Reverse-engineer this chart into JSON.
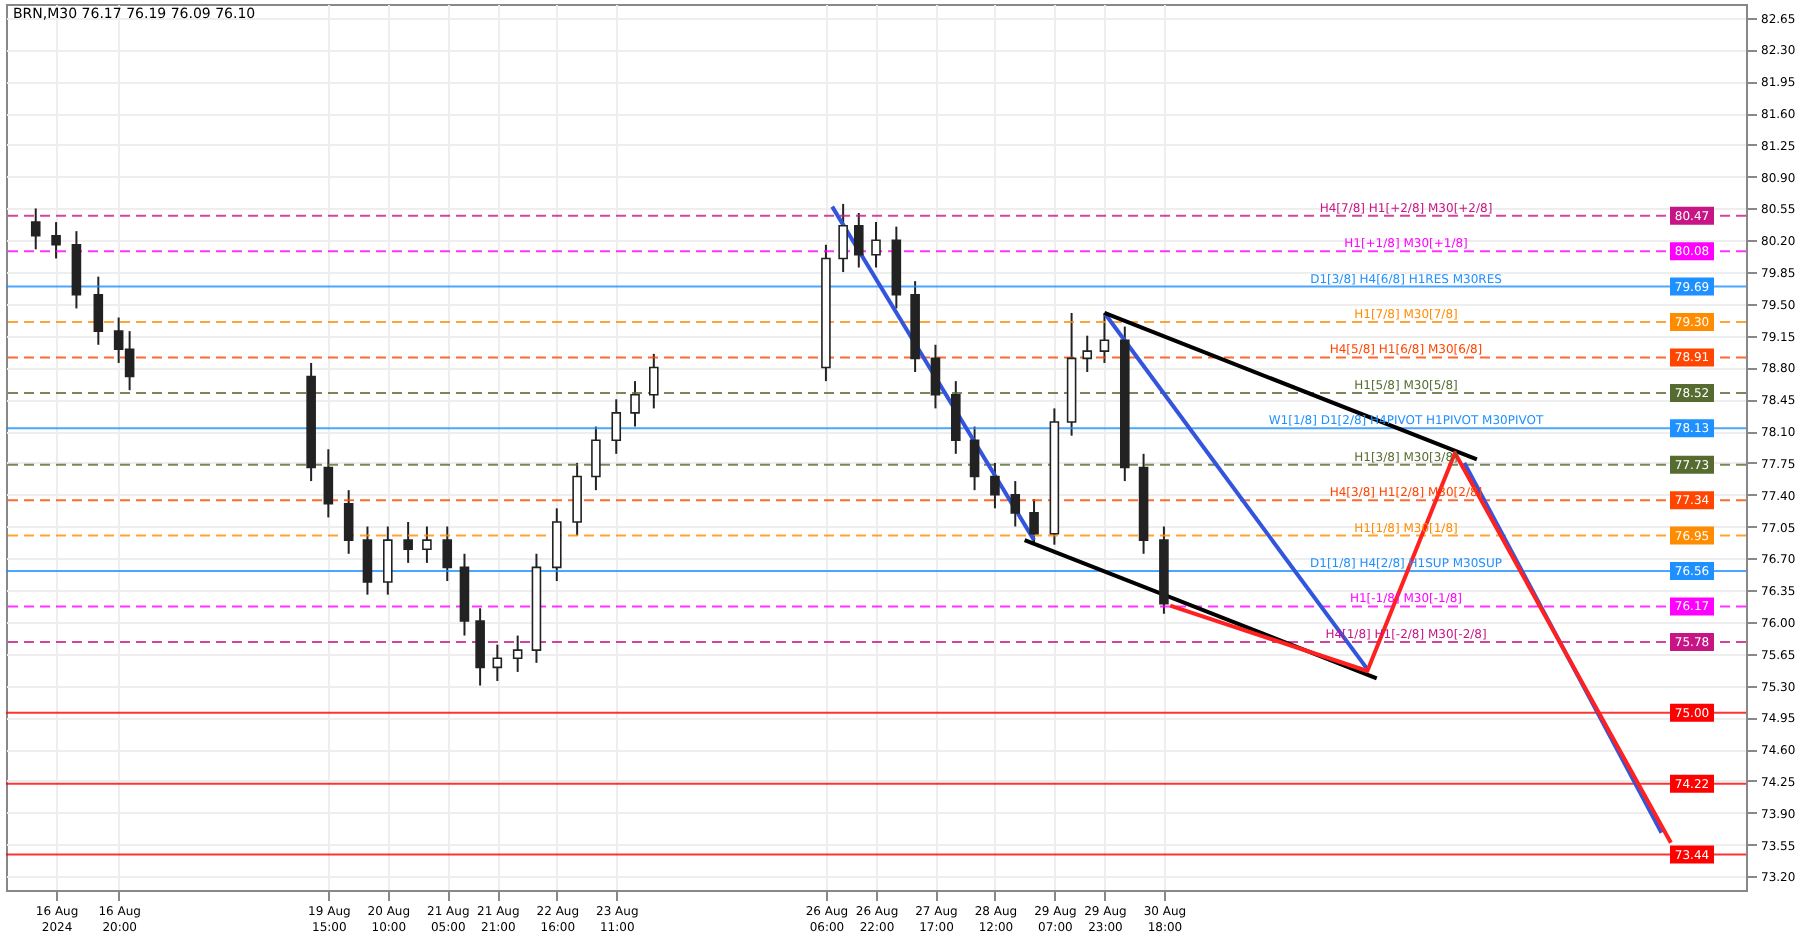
{
  "chart_data": {
    "type": "candlestick",
    "title": "BRN,M30  76.17 76.19 76.09 76.10",
    "xlim": [
      "2024-08-15T08:00",
      "2024-09-07T12:00"
    ],
    "ylim": [
      73.05,
      82.8
    ],
    "xticks": [
      {
        "value": "2024-08-16T00:00",
        "label": "16 Aug 2024"
      },
      {
        "value": "2024-08-16T20:00",
        "label": "16 Aug 20:00"
      },
      {
        "value": "2024-08-19T15:00",
        "label": "19 Aug 15:00"
      },
      {
        "value": "2024-08-20T10:00",
        "label": "20 Aug 10:00"
      },
      {
        "value": "2024-08-21T05:00",
        "label": "21 Aug 05:00"
      },
      {
        "value": "2024-08-21T21:00",
        "label": "21 Aug 21:00"
      },
      {
        "value": "2024-08-22T16:00",
        "label": "22 Aug 16:00"
      },
      {
        "value": "2024-08-23T11:00",
        "label": "23 Aug 11:00"
      },
      {
        "value": "2024-08-26T06:00",
        "label": "26 Aug 06:00"
      },
      {
        "value": "2024-08-26T22:00",
        "label": "26 Aug 22:00"
      },
      {
        "value": "2024-08-27T17:00",
        "label": "27 Aug 17:00"
      },
      {
        "value": "2024-08-28T12:00",
        "label": "28 Aug 12:00"
      },
      {
        "value": "2024-08-29T07:00",
        "label": "29 Aug 07:00"
      },
      {
        "value": "2024-08-29T23:00",
        "label": "29 Aug 23:00"
      },
      {
        "value": "2024-08-30T18:00",
        "label": "30 Aug 18:00"
      }
    ],
    "yticks": [
      {
        "value": 73.2,
        "label": "73.20"
      },
      {
        "value": 73.55,
        "label": "73.55"
      },
      {
        "value": 73.9,
        "label": "73.90"
      },
      {
        "value": 74.25,
        "label": "74.25"
      },
      {
        "value": 74.6,
        "label": "74.60"
      },
      {
        "value": 74.95,
        "label": "74.95"
      },
      {
        "value": 75.3,
        "label": "75.30"
      },
      {
        "value": 75.65,
        "label": "75.65"
      },
      {
        "value": 76.0,
        "label": "76.00"
      },
      {
        "value": 76.35,
        "label": "76.35"
      },
      {
        "value": 76.7,
        "label": "76.70"
      },
      {
        "value": 77.05,
        "label": "77.05"
      },
      {
        "value": 77.4,
        "label": "77.40"
      },
      {
        "value": 77.75,
        "label": "77.75"
      },
      {
        "value": 78.1,
        "label": "78.10"
      },
      {
        "value": 78.45,
        "label": "78.45"
      },
      {
        "value": 78.8,
        "label": "78.80"
      },
      {
        "value": 79.15,
        "label": "79.15"
      },
      {
        "value": 79.5,
        "label": "79.50"
      },
      {
        "value": 79.85,
        "label": "79.85"
      },
      {
        "value": 80.2,
        "label": "80.20"
      },
      {
        "value": 80.55,
        "label": "80.55"
      },
      {
        "value": 80.9,
        "label": "80.90"
      },
      {
        "value": 81.25,
        "label": "81.25"
      },
      {
        "value": 81.6,
        "label": "81.60"
      },
      {
        "value": 81.95,
        "label": "81.95"
      },
      {
        "value": 82.3,
        "label": "82.30"
      },
      {
        "value": 82.65,
        "label": "82.65"
      }
    ],
    "grid": true,
    "x": [
      "2024-08-15T17:30",
      "2024-08-16T00:00",
      "2024-08-16T06:30",
      "2024-08-16T13:30",
      "2024-08-16T20:00",
      "2024-08-16T23:30",
      "2024-08-19T09:30",
      "2024-08-19T15:00",
      "2024-08-19T21:30",
      "2024-08-20T03:30",
      "2024-08-20T10:00",
      "2024-08-20T16:30",
      "2024-08-20T22:30",
      "2024-08-21T05:00",
      "2024-08-21T10:30",
      "2024-08-21T15:30",
      "2024-08-21T21:00",
      "2024-08-22T03:30",
      "2024-08-22T09:30",
      "2024-08-22T16:00",
      "2024-08-22T22:30",
      "2024-08-23T04:30",
      "2024-08-23T11:00",
      "2024-08-23T17:00",
      "2024-08-23T23:00",
      "2024-08-26T06:00",
      "2024-08-26T11:30",
      "2024-08-26T16:30",
      "2024-08-26T22:00",
      "2024-08-27T04:30",
      "2024-08-27T10:30",
      "2024-08-27T17:00",
      "2024-08-27T23:30",
      "2024-08-28T05:30",
      "2024-08-28T12:00",
      "2024-08-28T18:30",
      "2024-08-29T00:30",
      "2024-08-29T07:00",
      "2024-08-29T12:30",
      "2024-08-29T17:30",
      "2024-08-29T23:00",
      "2024-08-30T05:30",
      "2024-08-30T11:30",
      "2024-08-30T18:00"
    ],
    "ohlc": [
      [
        80.4,
        80.55,
        80.1,
        80.25
      ],
      [
        80.25,
        80.4,
        80.0,
        80.15
      ],
      [
        80.15,
        80.3,
        79.45,
        79.6
      ],
      [
        79.6,
        79.8,
        79.05,
        79.2
      ],
      [
        79.2,
        79.35,
        78.85,
        79.0
      ],
      [
        79.0,
        79.2,
        78.55,
        78.7
      ],
      [
        78.7,
        78.85,
        77.55,
        77.7
      ],
      [
        77.7,
        77.9,
        77.15,
        77.3
      ],
      [
        77.3,
        77.45,
        76.75,
        76.9
      ],
      [
        76.9,
        77.05,
        76.3,
        76.44
      ],
      [
        76.44,
        77.05,
        76.3,
        76.9
      ],
      [
        76.9,
        77.1,
        76.65,
        76.8
      ],
      [
        76.8,
        77.05,
        76.65,
        76.9
      ],
      [
        76.9,
        77.05,
        76.45,
        76.6
      ],
      [
        76.6,
        76.75,
        75.85,
        76.01
      ],
      [
        76.01,
        76.15,
        75.3,
        75.5
      ],
      [
        75.5,
        75.75,
        75.35,
        75.6
      ],
      [
        75.6,
        75.85,
        75.45,
        75.69
      ],
      [
        75.69,
        76.75,
        75.55,
        76.6
      ],
      [
        76.6,
        77.25,
        76.45,
        77.1
      ],
      [
        77.1,
        77.75,
        76.95,
        77.6
      ],
      [
        77.6,
        78.15,
        77.45,
        78.0
      ],
      [
        78.0,
        78.45,
        77.85,
        78.3
      ],
      [
        78.3,
        78.65,
        78.15,
        78.5
      ],
      [
        78.5,
        78.95,
        78.35,
        78.8
      ],
      [
        78.8,
        80.15,
        78.65,
        80.0
      ],
      [
        80.0,
        80.6,
        79.85,
        80.36
      ],
      [
        80.36,
        80.5,
        79.9,
        80.04
      ],
      [
        80.04,
        80.4,
        79.9,
        80.2
      ],
      [
        80.2,
        80.35,
        79.45,
        79.6
      ],
      [
        79.6,
        79.75,
        78.75,
        78.9
      ],
      [
        78.9,
        79.05,
        78.35,
        78.5
      ],
      [
        78.5,
        78.65,
        77.85,
        78.0
      ],
      [
        78.0,
        78.15,
        77.45,
        77.6
      ],
      [
        77.6,
        77.75,
        77.25,
        77.4
      ],
      [
        77.4,
        77.55,
        77.05,
        77.2
      ],
      [
        77.2,
        77.35,
        76.85,
        76.97
      ],
      [
        76.97,
        78.35,
        76.85,
        78.2
      ],
      [
        78.2,
        79.4,
        78.05,
        78.9
      ],
      [
        78.9,
        79.15,
        78.75,
        78.98
      ],
      [
        78.98,
        79.4,
        78.85,
        79.1
      ],
      [
        79.1,
        79.25,
        77.55,
        77.7
      ],
      [
        77.7,
        77.85,
        76.75,
        76.9
      ],
      [
        76.9,
        77.05,
        76.09,
        76.2
      ]
    ],
    "series": [
      {
        "type": "line",
        "color": "#3355dd",
        "x": [
          "2024-08-26T08:00",
          "2024-08-29T00:30"
        ],
        "values": [
          80.57,
          76.9
        ]
      },
      {
        "type": "line",
        "color": "#3355dd",
        "x": [
          "2024-08-29T23:00",
          "2024-09-02T11:00"
        ],
        "values": [
          79.4,
          75.48
        ]
      },
      {
        "type": "line",
        "color": "#3355dd",
        "x": [
          "2024-09-03T18:00",
          "2024-09-06T09:00"
        ],
        "values": [
          77.75,
          73.68
        ]
      },
      {
        "type": "line",
        "color": "#000000",
        "x": [
          "2024-08-29T23:00",
          "2024-09-03T22:00"
        ],
        "values": [
          79.4,
          77.79
        ]
      },
      {
        "type": "line",
        "color": "#000000",
        "x": [
          "2024-08-28T21:30",
          "2024-09-02T14:00"
        ],
        "values": [
          76.9,
          75.38
        ]
      },
      {
        "type": "line",
        "color": "#ff2020",
        "x": [
          "2024-08-30T20:00",
          "2024-09-02T11:00",
          "2024-09-03T15:00",
          "2024-09-06T12:00"
        ],
        "values": [
          76.18,
          75.46,
          77.86,
          73.57
        ]
      }
    ],
    "ref_lines": [
      {
        "axis": "y",
        "value": 80.47,
        "label": "H4[7/8] H1[+2/8] M30[+2/8]",
        "color": "#c71585",
        "line_style": "dashed"
      },
      {
        "axis": "y",
        "value": 80.08,
        "label": "H1[+1/8] M30[+1/8]",
        "color": "#ff00ff",
        "line_style": "dashed"
      },
      {
        "axis": "y",
        "value": 79.69,
        "label": "D1[3/8] H4[6/8] H1RES M30RES",
        "color": "#1e90ff",
        "line_style": "solid"
      },
      {
        "axis": "y",
        "value": 79.3,
        "label": "H1[7/8] M30[7/8]",
        "color": "#ff8c00",
        "line_style": "dashed"
      },
      {
        "axis": "y",
        "value": 78.91,
        "label": "H4[5/8] H1[6/8] M30[6/8]",
        "color": "#ff4500",
        "line_style": "dashed"
      },
      {
        "axis": "y",
        "value": 78.52,
        "label": "H1[5/8] M30[5/8]",
        "color": "#556b2f",
        "line_style": "dashed"
      },
      {
        "axis": "y",
        "value": 78.13,
        "label": "W1[1/8] D1[2/8] H4PIVOT H1PIVOT M30PIVOT",
        "color": "#1e90ff",
        "line_style": "solid"
      },
      {
        "axis": "y",
        "value": 77.73,
        "label": "H1[3/8] M30[3/8]",
        "color": "#556b2f",
        "line_style": "dashed"
      },
      {
        "axis": "y",
        "value": 77.34,
        "label": "H4[3/8] H1[2/8] M30[2/8]",
        "color": "#ff4500",
        "line_style": "dashed"
      },
      {
        "axis": "y",
        "value": 76.95,
        "label": "H1[1/8] M30[1/8]",
        "color": "#ff8c00",
        "line_style": "dashed"
      },
      {
        "axis": "y",
        "value": 76.56,
        "label": "D1[1/8] H4[2/8] H1SUP M30SUP",
        "color": "#1e90ff",
        "line_style": "solid"
      },
      {
        "axis": "y",
        "value": 76.17,
        "label": "H1[-1/8] M30[-1/8]",
        "color": "#ff00ff",
        "line_style": "dashed"
      },
      {
        "axis": "y",
        "value": 75.78,
        "label": "H4[1/8] H1[-2/8] M30[-2/8]",
        "color": "#c71585",
        "line_style": "dashed"
      },
      {
        "axis": "y",
        "value": 75.0,
        "label": null,
        "color": "#ff0000",
        "line_style": "solid"
      },
      {
        "axis": "y",
        "value": 74.22,
        "label": null,
        "color": "#ff0000",
        "line_style": "solid"
      },
      {
        "axis": "y",
        "value": 73.44,
        "label": null,
        "color": "#ff0000",
        "line_style": "solid"
      }
    ],
    "annotations": [
      {
        "text": "80.47",
        "y": 80.47
      },
      {
        "text": "80.08",
        "y": 80.08
      },
      {
        "text": "79.69",
        "y": 79.69
      },
      {
        "text": "79.30",
        "y": 79.3
      },
      {
        "text": "78.91",
        "y": 78.91
      },
      {
        "text": "78.52",
        "y": 78.52
      },
      {
        "text": "78.13",
        "y": 78.13
      },
      {
        "text": "77.73",
        "y": 77.73
      },
      {
        "text": "77.34",
        "y": 77.34
      },
      {
        "text": "76.95",
        "y": 76.95
      },
      {
        "text": "76.56",
        "y": 76.56
      },
      {
        "text": "76.17",
        "y": 76.17
      },
      {
        "text": "75.78",
        "y": 75.78
      },
      {
        "text": "75.00",
        "y": 75.0
      },
      {
        "text": "74.22",
        "y": 74.22
      },
      {
        "text": "73.44",
        "y": 73.44
      }
    ]
  }
}
